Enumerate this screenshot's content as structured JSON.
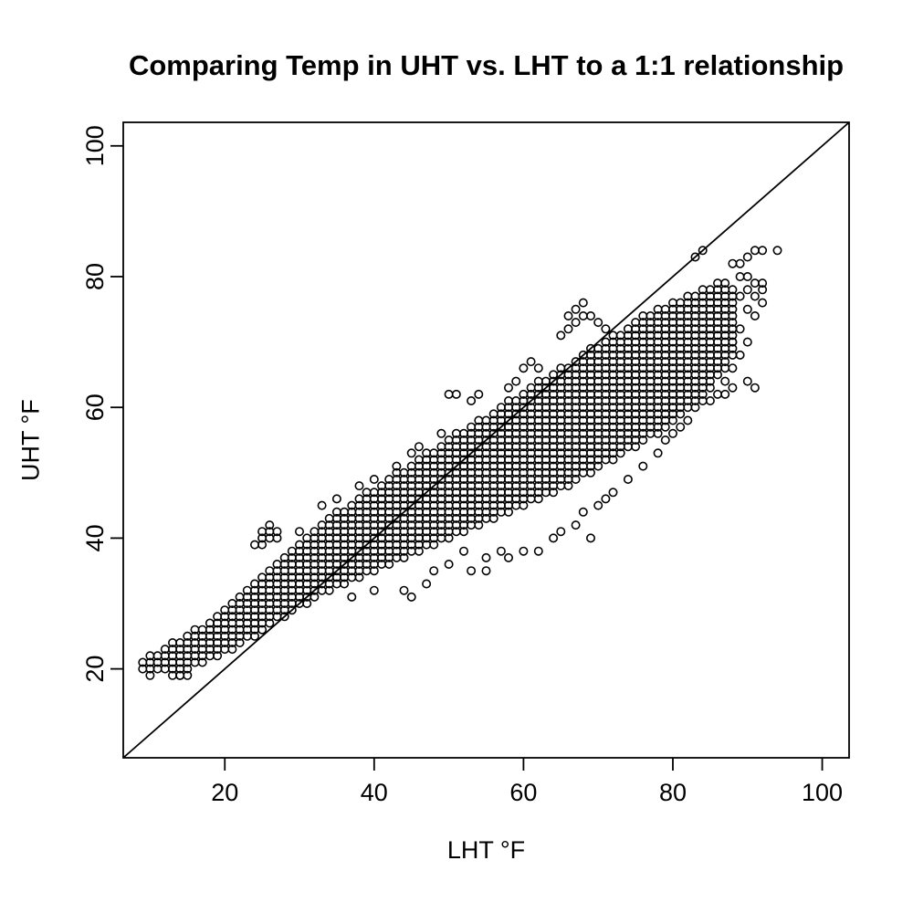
{
  "figure": {
    "background_color": "#ffffff",
    "foreground_color": "#000000"
  },
  "chart_data": {
    "type": "scatter",
    "title": "Comparing Temp in UHT vs. LHT to a 1:1 relationship",
    "xlabel": "LHT °F",
    "ylabel": "UHT °F",
    "xlim": [
      6.4,
      103.6
    ],
    "ylim": [
      6.4,
      103.6
    ],
    "x_ticks": [
      20,
      40,
      60,
      80,
      100
    ],
    "y_ticks": [
      20,
      40,
      60,
      80,
      100
    ],
    "grid": false,
    "legend": null,
    "marker": "open-circle",
    "reference_line": {
      "name": "1:1 line",
      "intercept": 0,
      "slope": 1
    },
    "x_units": "degrees F (LHT)",
    "y_units": "degrees F (UHT)",
    "dense_band_note": "dense cloud of integer-grid points; each triple is [LHT, UHT_min, UHT_max] with points at every integer UHT",
    "dense_band": [
      [
        10,
        19,
        22
      ],
      [
        11,
        20,
        22
      ],
      [
        12,
        20,
        23
      ],
      [
        13,
        20,
        24
      ],
      [
        14,
        19,
        24
      ],
      [
        15,
        20,
        25
      ],
      [
        16,
        21,
        26
      ],
      [
        17,
        21,
        26
      ],
      [
        18,
        22,
        27
      ],
      [
        19,
        22,
        28
      ],
      [
        20,
        23,
        29
      ],
      [
        21,
        23,
        30
      ],
      [
        22,
        24,
        31
      ],
      [
        23,
        25,
        32
      ],
      [
        24,
        25,
        33
      ],
      [
        25,
        26,
        34
      ],
      [
        26,
        27,
        35
      ],
      [
        27,
        28,
        36
      ],
      [
        28,
        28,
        37
      ],
      [
        29,
        29,
        38
      ],
      [
        30,
        30,
        39
      ],
      [
        31,
        30,
        40
      ],
      [
        32,
        31,
        41
      ],
      [
        33,
        32,
        42
      ],
      [
        34,
        32,
        43
      ],
      [
        35,
        33,
        44
      ],
      [
        36,
        33,
        44
      ],
      [
        37,
        34,
        45
      ],
      [
        38,
        34,
        46
      ],
      [
        39,
        35,
        47
      ],
      [
        40,
        35,
        47
      ],
      [
        41,
        36,
        48
      ],
      [
        42,
        36,
        49
      ],
      [
        43,
        37,
        50
      ],
      [
        44,
        37,
        50
      ],
      [
        45,
        38,
        51
      ],
      [
        46,
        38,
        52
      ],
      [
        47,
        39,
        53
      ],
      [
        48,
        39,
        53
      ],
      [
        49,
        40,
        54
      ],
      [
        50,
        40,
        55
      ],
      [
        51,
        41,
        56
      ],
      [
        52,
        41,
        56
      ],
      [
        53,
        42,
        57
      ],
      [
        54,
        42,
        58
      ],
      [
        55,
        43,
        58
      ],
      [
        56,
        43,
        59
      ],
      [
        57,
        44,
        60
      ],
      [
        58,
        44,
        61
      ],
      [
        59,
        45,
        61
      ],
      [
        60,
        45,
        62
      ],
      [
        61,
        46,
        63
      ],
      [
        62,
        46,
        64
      ],
      [
        63,
        47,
        64
      ],
      [
        64,
        47,
        65
      ],
      [
        65,
        48,
        66
      ],
      [
        66,
        48,
        66
      ],
      [
        67,
        49,
        67
      ],
      [
        68,
        50,
        68
      ],
      [
        69,
        50,
        69
      ],
      [
        70,
        51,
        69
      ],
      [
        71,
        52,
        70
      ],
      [
        72,
        52,
        71
      ],
      [
        73,
        53,
        71
      ],
      [
        74,
        54,
        72
      ],
      [
        75,
        54,
        73
      ],
      [
        76,
        55,
        74
      ],
      [
        77,
        56,
        74
      ],
      [
        78,
        56,
        75
      ],
      [
        79,
        57,
        75
      ],
      [
        80,
        58,
        76
      ],
      [
        81,
        59,
        76
      ],
      [
        82,
        60,
        77
      ],
      [
        83,
        61,
        77
      ],
      [
        84,
        62,
        78
      ],
      [
        85,
        63,
        78
      ],
      [
        86,
        65,
        79
      ],
      [
        87,
        66,
        79
      ],
      [
        88,
        68,
        78
      ]
    ],
    "outlier_points": [
      [
        9,
        20
      ],
      [
        9,
        21
      ],
      [
        13,
        19
      ],
      [
        14,
        19
      ],
      [
        15,
        19
      ],
      [
        24,
        39
      ],
      [
        25,
        39
      ],
      [
        25,
        40
      ],
      [
        25,
        41
      ],
      [
        26,
        40
      ],
      [
        26,
        41
      ],
      [
        26,
        42
      ],
      [
        27,
        40
      ],
      [
        27,
        41
      ],
      [
        30,
        41
      ],
      [
        33,
        45
      ],
      [
        35,
        46
      ],
      [
        38,
        48
      ],
      [
        40,
        49
      ],
      [
        43,
        51
      ],
      [
        45,
        53
      ],
      [
        46,
        54
      ],
      [
        49,
        56
      ],
      [
        50,
        62
      ],
      [
        51,
        62
      ],
      [
        53,
        61
      ],
      [
        54,
        62
      ],
      [
        58,
        63
      ],
      [
        59,
        64
      ],
      [
        60,
        66
      ],
      [
        61,
        67
      ],
      [
        62,
        66
      ],
      [
        65,
        71
      ],
      [
        66,
        72
      ],
      [
        66,
        74
      ],
      [
        67,
        73
      ],
      [
        67,
        75
      ],
      [
        68,
        74
      ],
      [
        68,
        76
      ],
      [
        69,
        74
      ],
      [
        70,
        73
      ],
      [
        71,
        72
      ],
      [
        83,
        83
      ],
      [
        84,
        84
      ],
      [
        88,
        82
      ],
      [
        89,
        82
      ],
      [
        90,
        83
      ],
      [
        91,
        84
      ],
      [
        92,
        84
      ],
      [
        94,
        84
      ],
      [
        89,
        80
      ],
      [
        90,
        80
      ],
      [
        91,
        79
      ],
      [
        92,
        79
      ],
      [
        92,
        78
      ],
      [
        90,
        78
      ],
      [
        91,
        77
      ],
      [
        92,
        76
      ],
      [
        89,
        77
      ],
      [
        90,
        75
      ],
      [
        91,
        74
      ],
      [
        88,
        72
      ],
      [
        89,
        72
      ],
      [
        88,
        70
      ],
      [
        90,
        70
      ],
      [
        89,
        68
      ],
      [
        88,
        66
      ],
      [
        87,
        64
      ],
      [
        88,
        63
      ],
      [
        87,
        62
      ],
      [
        90,
        64
      ],
      [
        91,
        63
      ],
      [
        37,
        31
      ],
      [
        40,
        32
      ],
      [
        44,
        32
      ],
      [
        45,
        31
      ],
      [
        47,
        33
      ],
      [
        48,
        35
      ],
      [
        50,
        36
      ],
      [
        52,
        38
      ],
      [
        53,
        35
      ],
      [
        55,
        35
      ],
      [
        55,
        37
      ],
      [
        57,
        38
      ],
      [
        58,
        37
      ],
      [
        60,
        38
      ],
      [
        62,
        38
      ],
      [
        64,
        40
      ],
      [
        65,
        41
      ],
      [
        67,
        42
      ],
      [
        69,
        40
      ],
      [
        68,
        44
      ],
      [
        70,
        45
      ],
      [
        71,
        46
      ],
      [
        72,
        47
      ],
      [
        74,
        49
      ],
      [
        76,
        51
      ],
      [
        78,
        53
      ],
      [
        79,
        55
      ],
      [
        80,
        56
      ],
      [
        81,
        57
      ],
      [
        82,
        58
      ],
      [
        80,
        60
      ],
      [
        83,
        60
      ],
      [
        84,
        61
      ],
      [
        85,
        61
      ],
      [
        86,
        62
      ]
    ]
  }
}
